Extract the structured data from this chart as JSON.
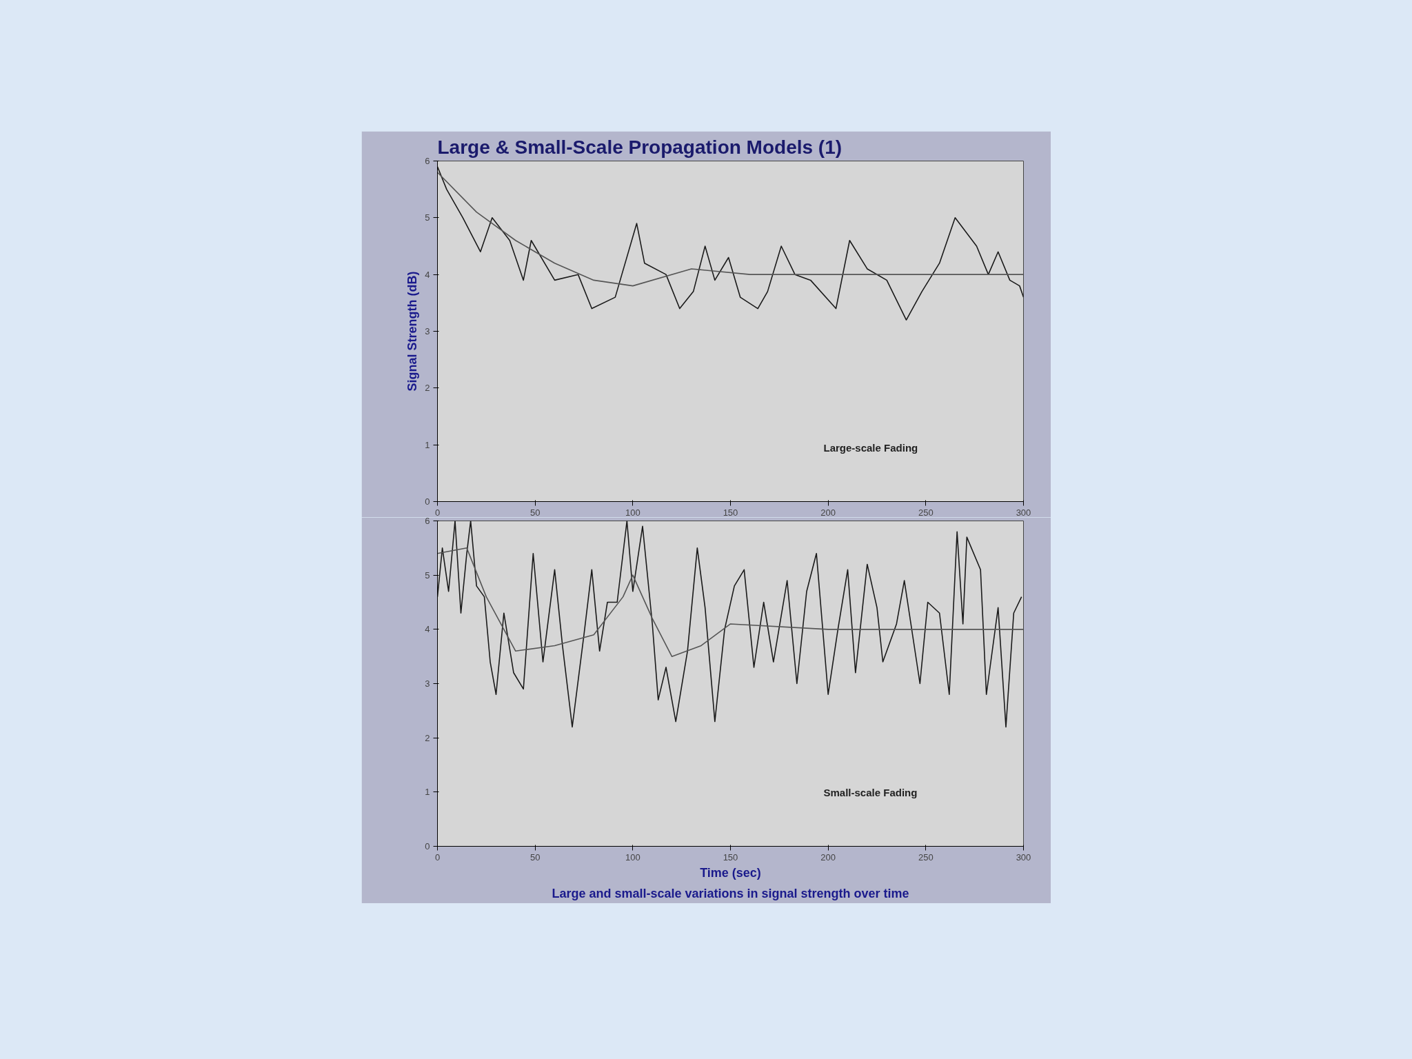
{
  "chart_data": [
    {
      "type": "line",
      "title": "Large & Small-Scale Propagation Models (1)",
      "ylabel": "Signal Strength (dB)",
      "annotations": [
        "Large-scale Fading"
      ],
      "xlim": [
        0,
        300
      ],
      "ylim": [
        0,
        6
      ],
      "xticks": [
        0,
        50,
        100,
        150,
        200,
        250,
        300
      ],
      "yticks": [
        0,
        1,
        2,
        3,
        4,
        5,
        6
      ],
      "series": [
        {
          "color": "#1a1a1a",
          "x": [
            0,
            4.7,
            13,
            22,
            28,
            37,
            44,
            48,
            60,
            72,
            79,
            91,
            102,
            106,
            117,
            124,
            131,
            137,
            142,
            149,
            155,
            164,
            169,
            176,
            183,
            191,
            204,
            211,
            220,
            230,
            240,
            248,
            257,
            265,
            276,
            282,
            287,
            293,
            298,
            300
          ],
          "values": [
            5.9,
            5.5,
            5.0,
            4.4,
            5.0,
            4.6,
            3.9,
            4.6,
            3.9,
            4.0,
            3.4,
            3.6,
            4.9,
            4.2,
            4.0,
            3.4,
            3.7,
            4.5,
            3.9,
            4.3,
            3.6,
            3.4,
            3.7,
            4.5,
            4.0,
            3.9,
            3.4,
            4.6,
            4.1,
            3.9,
            3.2,
            3.7,
            4.2,
            5.0,
            4.5,
            4.0,
            4.4,
            3.9,
            3.8,
            3.6
          ]
        },
        {
          "color": "#555555",
          "x": [
            0,
            20,
            40,
            60,
            80,
            100,
            130,
            160,
            200,
            250,
            300
          ],
          "values": [
            5.8,
            5.1,
            4.6,
            4.2,
            3.9,
            3.8,
            4.1,
            4.0,
            4.0,
            4.0,
            4.0
          ]
        }
      ]
    },
    {
      "type": "line",
      "xlabel": "Time (sec)",
      "annotations": [
        "Small-scale Fading",
        "Large and small-scale variations in signal strength over time"
      ],
      "xlim": [
        0,
        300
      ],
      "ylim": [
        0,
        6
      ],
      "xticks": [
        0,
        50,
        100,
        150,
        200,
        250,
        300
      ],
      "yticks": [
        0,
        1,
        2,
        3,
        4,
        5,
        6
      ],
      "series": [
        {
          "color": "#1a1a1a",
          "x": [
            0,
            2.5,
            5.7,
            9,
            12,
            15,
            17,
            20,
            24,
            27,
            30,
            34,
            39,
            44,
            49,
            54,
            60,
            64,
            69,
            75,
            79,
            83,
            87,
            92,
            97,
            100,
            105,
            110,
            113,
            117,
            122,
            128,
            133,
            137,
            142,
            147,
            152,
            157,
            162,
            167,
            172,
            179,
            184,
            189,
            194,
            200,
            205,
            210,
            214,
            220,
            225,
            228,
            235,
            239,
            247,
            251,
            257,
            262,
            266,
            269,
            271,
            278,
            281,
            287,
            291,
            295,
            299
          ],
          "values": [
            4.6,
            5.5,
            4.7,
            6.0,
            4.3,
            5.4,
            6.0,
            4.8,
            4.6,
            3.4,
            2.8,
            4.3,
            3.2,
            2.9,
            5.4,
            3.4,
            5.1,
            3.7,
            2.2,
            3.9,
            5.1,
            3.6,
            4.5,
            4.5,
            6.0,
            4.7,
            5.9,
            4.1,
            2.7,
            3.3,
            2.3,
            3.6,
            5.5,
            4.4,
            2.3,
            4.0,
            4.8,
            5.1,
            3.3,
            4.5,
            3.4,
            4.9,
            3.0,
            4.7,
            5.4,
            2.8,
            4.0,
            5.1,
            3.2,
            5.2,
            4.4,
            3.4,
            4.1,
            4.9,
            3.0,
            4.5,
            4.3,
            2.8,
            5.8,
            4.1,
            5.7,
            5.1,
            2.8,
            4.4,
            2.2,
            4.3,
            4.6
          ]
        },
        {
          "color": "#555555",
          "x": [
            0,
            15,
            25,
            40,
            60,
            80,
            95,
            100,
            110,
            120,
            135,
            150,
            200,
            300
          ],
          "values": [
            5.4,
            5.5,
            4.6,
            3.6,
            3.7,
            3.9,
            4.6,
            5.0,
            4.2,
            3.5,
            3.7,
            4.1,
            4.0,
            4.0
          ]
        }
      ]
    }
  ]
}
